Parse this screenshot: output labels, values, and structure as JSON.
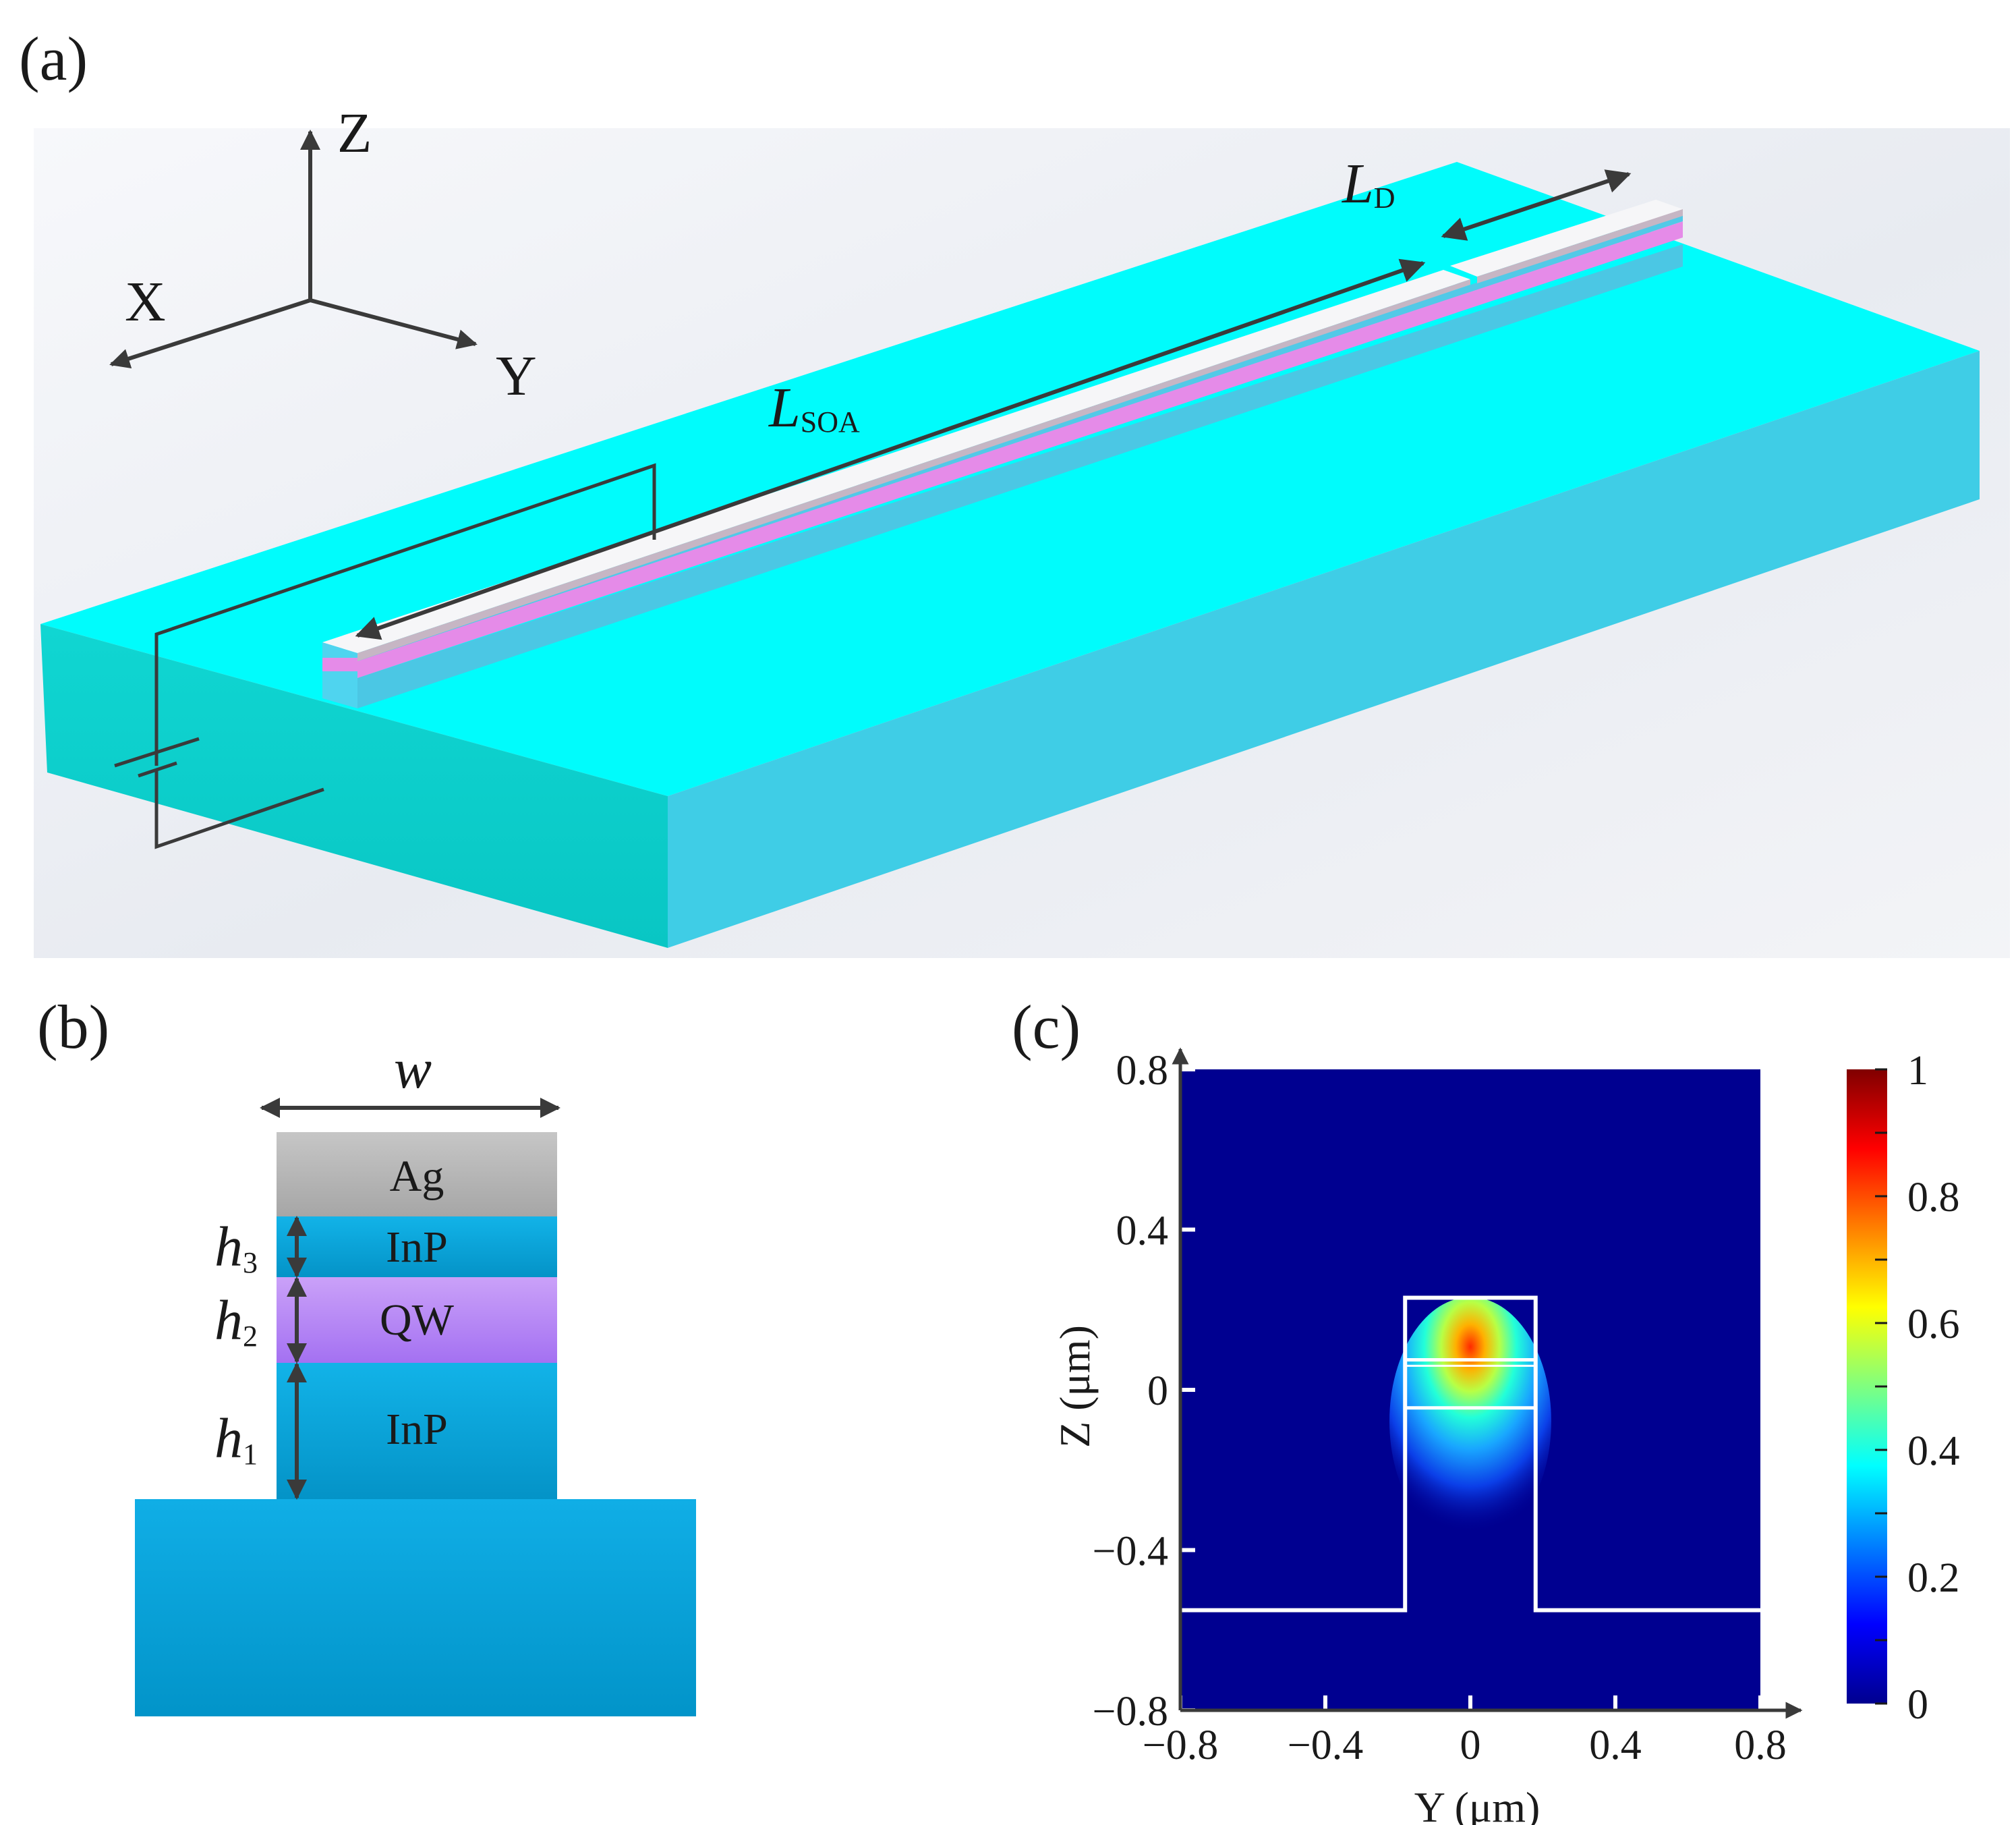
{
  "panel_a": {
    "label": "(a)",
    "axis_labels": {
      "z": "Z",
      "x": "X",
      "y": "Y"
    },
    "l_soa": {
      "main": "L",
      "sub": "SOA"
    },
    "l_d": {
      "main": "L",
      "sub": "D"
    }
  },
  "panel_b": {
    "label": "(b)",
    "width_label": "w",
    "layers": [
      {
        "name": "Ag",
        "color": "#b8b8b8"
      },
      {
        "name": "InP",
        "color": "#14ace0"
      },
      {
        "name": "QW",
        "color": "#b77ef5"
      },
      {
        "name": "InP",
        "color": "#14ace0"
      }
    ],
    "heights": [
      {
        "main": "h",
        "sub": "3"
      },
      {
        "main": "h",
        "sub": "2"
      },
      {
        "main": "h",
        "sub": "1"
      }
    ],
    "substrate_color": "#0aa2dc"
  },
  "panel_c": {
    "label": "(c)",
    "chart_data": {
      "type": "heatmap",
      "xlabel": "Y (μm)",
      "ylabel": "Z (μm)",
      "xlim": [
        -0.8,
        0.8
      ],
      "ylim": [
        -0.8,
        0.8
      ],
      "xticks": [
        "−0.8",
        "−0.4",
        "0",
        "0.4",
        "0.8"
      ],
      "yticks": [
        "0.8",
        "0.4",
        "0",
        "−0.4",
        "−0.8"
      ],
      "colorbar_ticks": [
        "1",
        "0.8",
        "0.6",
        "0.4",
        "0.2",
        "0"
      ],
      "colorbar_range": [
        0,
        1
      ],
      "colormap": "jet",
      "waveguide_outline": {
        "substrate_top_z": -0.55,
        "ridge_y": [
          -0.18,
          0.18
        ],
        "ridge_top_z": 0.23,
        "interface_z": [
          0.075,
          0.06,
          -0.045
        ]
      },
      "field_peak": {
        "y": 0.0,
        "z": 0.03,
        "value": 0.85
      }
    }
  }
}
